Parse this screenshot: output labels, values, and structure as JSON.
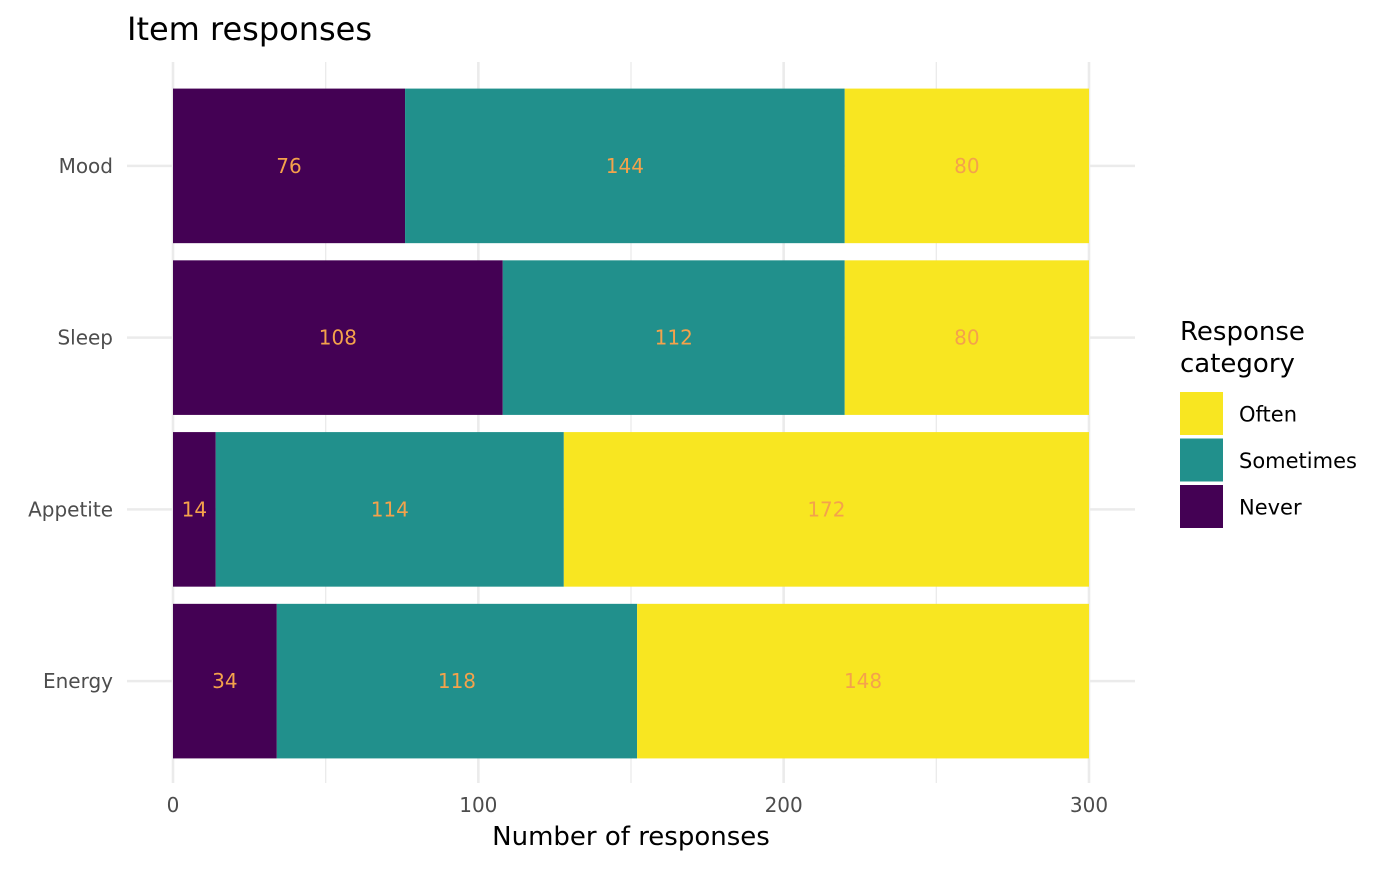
{
  "chart_data": {
    "type": "bar",
    "orientation": "horizontal",
    "stacked": true,
    "title": "Item responses",
    "xlabel": "Number of responses",
    "ylabel": "",
    "xlim": [
      0,
      300
    ],
    "x_ticks": [
      0,
      100,
      200,
      300
    ],
    "x_tick_labels": [
      "0",
      "100",
      "200",
      "300"
    ],
    "categories": [
      "Mood",
      "Sleep",
      "Appetite",
      "Energy"
    ],
    "series": [
      {
        "name": "Never",
        "color": "#440154",
        "values": [
          76,
          108,
          14,
          34
        ]
      },
      {
        "name": "Sometimes",
        "color": "#21908C",
        "values": [
          144,
          112,
          114,
          118
        ]
      },
      {
        "name": "Often",
        "color": "#F8E621",
        "values": [
          80,
          80,
          172,
          148
        ]
      }
    ],
    "data_labels": {
      "Never": [
        "76",
        "108",
        "14",
        "34"
      ],
      "Sometimes": [
        "144",
        "112",
        "114",
        "118"
      ],
      "Often": [
        "80",
        "80",
        "172",
        "148"
      ]
    },
    "data_label_color": "#F4A24B",
    "legend": {
      "title": "Response category",
      "title_lines": [
        "Response",
        "category"
      ],
      "placement": "right",
      "order": [
        "Often",
        "Sometimes",
        "Never"
      ]
    },
    "grid": true,
    "grid_color": "#EBEBEB"
  }
}
